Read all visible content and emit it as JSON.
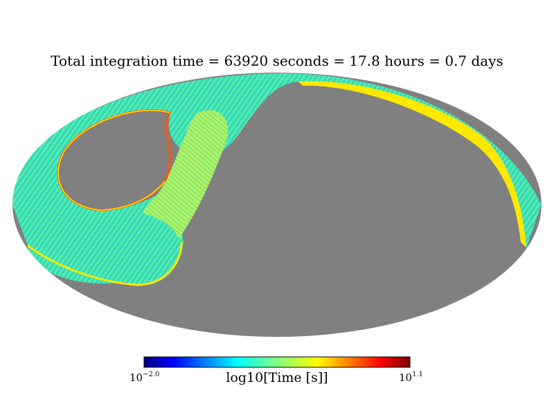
{
  "chart_data": {
    "type": "heatmap",
    "projection": "Mollweide full-sky",
    "title": "Total integration time = 63920 seconds = 17.8 hours = 0.7 days",
    "colormap": "jet",
    "colorbar": {
      "label": "log10[Time [s]]",
      "min_base": "10",
      "min_exp": "−2.0",
      "max_base": "10",
      "max_exp": "1.1",
      "range": [
        -2.0,
        1.1
      ]
    },
    "unobserved_color": "#808080"
  },
  "colors": {
    "low": "#26e0c8",
    "mid": "#8cf070",
    "high": "#ffe800",
    "edge": "#ff5500",
    "cyan": "#00c8f0",
    "blank": "#808080"
  }
}
